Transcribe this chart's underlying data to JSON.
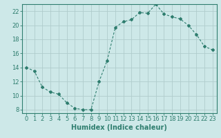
{
  "x": [
    0,
    1,
    2,
    3,
    4,
    5,
    6,
    7,
    8,
    9,
    10,
    11,
    12,
    13,
    14,
    15,
    16,
    17,
    18,
    19,
    20,
    21,
    22,
    23
  ],
  "y": [
    14.0,
    13.5,
    11.2,
    10.5,
    10.2,
    9.0,
    8.2,
    8.0,
    8.0,
    12.0,
    15.0,
    19.7,
    20.5,
    20.8,
    21.8,
    21.7,
    23.0,
    21.6,
    21.2,
    20.9,
    20.0,
    18.7,
    17.0,
    16.5
  ],
  "line_color": "#2e7d6e",
  "marker": "D",
  "marker_size": 2,
  "bg_color": "#cde8e8",
  "grid_color": "#b0cccc",
  "xlabel": "Humidex (Indice chaleur)",
  "xlim": [
    -0.5,
    23.5
  ],
  "ylim": [
    7.5,
    23.0
  ],
  "yticks": [
    8,
    10,
    12,
    14,
    16,
    18,
    20,
    22
  ],
  "xticks": [
    0,
    1,
    2,
    3,
    4,
    5,
    6,
    7,
    8,
    9,
    10,
    11,
    12,
    13,
    14,
    15,
    16,
    17,
    18,
    19,
    20,
    21,
    22,
    23
  ],
  "xlabel_fontsize": 7,
  "tick_fontsize": 6
}
